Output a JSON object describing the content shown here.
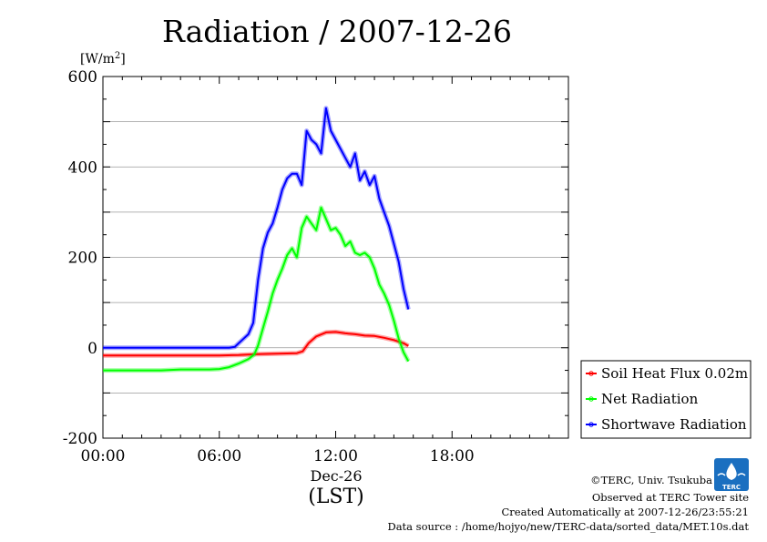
{
  "chart_data": {
    "type": "line",
    "title": "Radiation / 2007-12-26",
    "ylabel": "[W/m",
    "ylabel_sup": "2",
    "ylabel_close": "]",
    "ylim": [
      -200,
      600
    ],
    "yticks": [
      -200,
      0,
      200,
      400,
      600
    ],
    "xlim": [
      0,
      24
    ],
    "xticks": [
      0,
      6,
      12,
      18
    ],
    "xtick_labels": [
      "00:00",
      "06:00",
      "12:00",
      "18:00"
    ],
    "date_label": "Dec-26",
    "xlabel": "(LST)",
    "grid": true,
    "legend_position": "right",
    "series": [
      {
        "name": "Soil Heat Flux 0.02m",
        "color": "#ff0000",
        "x": [
          0,
          1,
          2,
          3,
          4,
          5,
          6,
          7,
          7.5,
          8,
          9,
          10,
          10.3,
          10.6,
          11,
          11.5,
          12,
          12.5,
          13,
          13.5,
          14,
          14.5,
          15,
          15.5,
          15.75
        ],
        "y": [
          -17,
          -17,
          -17,
          -17,
          -17,
          -17,
          -17,
          -16,
          -15,
          -14,
          -13,
          -12,
          -8,
          10,
          25,
          34,
          35,
          32,
          30,
          27,
          26,
          22,
          17,
          10,
          4
        ]
      },
      {
        "name": "Net Radiation",
        "color": "#00ff00",
        "x": [
          0,
          1,
          2,
          3,
          4,
          5,
          5.5,
          6,
          6.5,
          7,
          7.5,
          7.8,
          8,
          8.3,
          8.5,
          8.75,
          9,
          9.25,
          9.5,
          9.75,
          10,
          10.25,
          10.5,
          10.75,
          11,
          11.25,
          11.5,
          11.75,
          12,
          12.25,
          12.5,
          12.75,
          13,
          13.25,
          13.5,
          13.75,
          14,
          14.25,
          14.5,
          14.75,
          15,
          15.25,
          15.5,
          15.75
        ],
        "y": [
          -50,
          -50,
          -50,
          -50,
          -48,
          -48,
          -48,
          -47,
          -43,
          -35,
          -25,
          -15,
          5,
          50,
          80,
          120,
          150,
          175,
          205,
          220,
          200,
          265,
          290,
          275,
          260,
          310,
          285,
          260,
          265,
          250,
          225,
          235,
          210,
          205,
          210,
          200,
          175,
          140,
          120,
          95,
          60,
          20,
          -10,
          -30
        ]
      },
      {
        "name": "Shortwave Radiation",
        "color": "#0000ff",
        "x": [
          0,
          1,
          2,
          3,
          4,
          5,
          6,
          6.5,
          6.8,
          7,
          7.25,
          7.5,
          7.75,
          8,
          8.25,
          8.5,
          8.75,
          9,
          9.25,
          9.5,
          9.75,
          10,
          10.25,
          10.5,
          10.75,
          11,
          11.25,
          11.5,
          11.75,
          12,
          12.25,
          12.5,
          12.75,
          13,
          13.25,
          13.5,
          13.75,
          14,
          14.25,
          14.5,
          14.75,
          15,
          15.25,
          15.5,
          15.75
        ],
        "y": [
          0,
          0,
          0,
          0,
          0,
          0,
          0,
          0,
          2,
          10,
          20,
          30,
          55,
          150,
          220,
          255,
          275,
          310,
          350,
          375,
          385,
          385,
          360,
          480,
          460,
          450,
          430,
          530,
          480,
          460,
          440,
          420,
          400,
          430,
          370,
          390,
          360,
          380,
          330,
          300,
          270,
          230,
          190,
          130,
          85
        ]
      }
    ]
  },
  "footer": {
    "copyright": "©TERC, Univ. Tsukuba",
    "observed": "Observed at TERC Tower site",
    "created": "Created Automatically at 2007-12-26/23:55:21",
    "source": "Data source : /home/hojyo/new/TERC-data/sorted_data/MET.10s.dat"
  },
  "logo": {
    "text": "TERC",
    "color": "#1a6fc0"
  }
}
